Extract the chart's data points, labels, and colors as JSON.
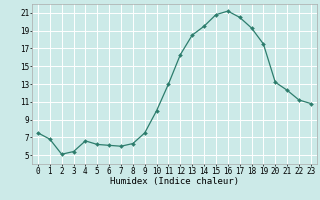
{
  "x": [
    0,
    1,
    2,
    3,
    4,
    5,
    6,
    7,
    8,
    9,
    10,
    11,
    12,
    13,
    14,
    15,
    16,
    17,
    18,
    19,
    20,
    21,
    22,
    23
  ],
  "y": [
    7.5,
    6.8,
    5.1,
    5.4,
    6.6,
    6.2,
    6.1,
    6.0,
    6.3,
    7.5,
    10.0,
    13.0,
    16.3,
    18.5,
    19.5,
    20.8,
    21.2,
    20.5,
    19.3,
    17.5,
    13.2,
    12.3,
    11.2,
    10.8
  ],
  "line_color": "#2d7d6d",
  "marker": "D",
  "marker_size": 2.0,
  "bg_color": "#cceae8",
  "grid_color": "#ffffff",
  "xlabel": "Humidex (Indice chaleur)",
  "xlim": [
    -0.5,
    23.5
  ],
  "ylim": [
    4,
    22
  ],
  "yticks": [
    5,
    7,
    9,
    11,
    13,
    15,
    17,
    19,
    21
  ],
  "xticks": [
    0,
    1,
    2,
    3,
    4,
    5,
    6,
    7,
    8,
    9,
    10,
    11,
    12,
    13,
    14,
    15,
    16,
    17,
    18,
    19,
    20,
    21,
    22,
    23
  ],
  "tick_fontsize": 5.5,
  "label_fontsize": 6.5
}
